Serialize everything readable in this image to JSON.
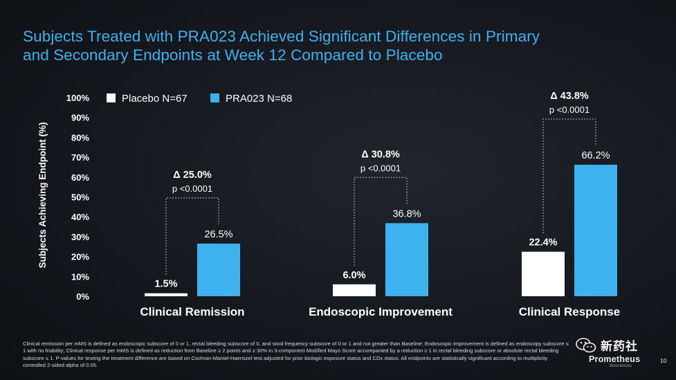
{
  "title": {
    "line1": "Subjects Treated with PRA023 Achieved Significant Differences in Primary",
    "line2": "and Secondary Endpoints at Week 12 Compared to Placebo"
  },
  "colors": {
    "title": "#3db2ef",
    "placebo": "#ffffff",
    "pra023": "#3db2ef",
    "background": "#15191f"
  },
  "chart_data": {
    "type": "bar",
    "ylabel": "Subjects Achieving Endpoint (%)",
    "ylim": [
      0,
      100
    ],
    "yticks": [
      "0%",
      "10%",
      "20%",
      "30%",
      "40%",
      "50%",
      "60%",
      "70%",
      "80%",
      "90%",
      "100%"
    ],
    "grid": false,
    "legend_position": "top-left",
    "categories": [
      "Clinical Remission",
      "Endoscopic Improvement",
      "Clinical Response"
    ],
    "series": [
      {
        "name": "Placebo N=67",
        "values": [
          1.5,
          6.0,
          22.4
        ],
        "labels": [
          "1.5%",
          "6.0%",
          "22.4%"
        ]
      },
      {
        "name": "PRA023 N=68",
        "values": [
          26.5,
          36.8,
          66.2
        ],
        "labels": [
          "26.5%",
          "36.8%",
          "66.2%"
        ]
      }
    ],
    "annotations": [
      {
        "delta": "25.0%",
        "p": "p <0.0001"
      },
      {
        "delta": "30.8%",
        "p": "p <0.0001"
      },
      {
        "delta": "43.8%",
        "p": "p <0.0001"
      }
    ],
    "delta_symbol": "Δ"
  },
  "footnote": "Clinical remission per mMS is defined as endoscopic subscore of 0 or 1, rectal bleeding subscore of 0, and stool frequency subscore of 0 or 1 and not greater than Baseline; Endoscopic improvement is defined as endoscopy subscore ≤ 1 with no friability; Clinical response per mMS is defined as reduction from Baseline ≥ 2 points and ≥ 30% in 3-component Modified Mayo Score accompanied by a reduction ≥ 1 in rectal bleeding subscore or absolute rectal bleeding subscore ≤ 1. P-values for testing the treatment difference are based on Cochran-Mantel-Haenszel test adjusted for prior biologic exposure status and CDx status. All endpoints are statistically significant according to multiplicity controlled 2-sided alpha of 0.05.",
  "logo": {
    "name": "Prometheus",
    "sub": "Biosciences"
  },
  "page_number": "10",
  "watermark": "新药社"
}
